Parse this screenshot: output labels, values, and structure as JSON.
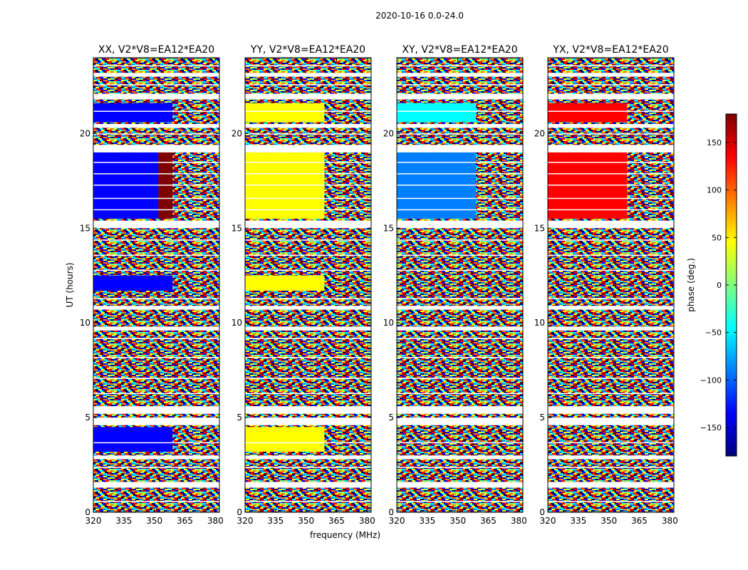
{
  "figure": {
    "suptitle": "2020-10-16 0.0-24.0"
  },
  "colorbar": {
    "label": "phase (deg.)",
    "range": [
      -180,
      180
    ],
    "ticks": [
      150,
      100,
      50,
      0,
      -50,
      -100,
      -150
    ],
    "tick_labels": [
      "150",
      "100",
      "50",
      "0",
      "−50",
      "−100",
      "−150"
    ],
    "colormap": "jet",
    "colors": [
      "#00007f",
      "#0000ff",
      "#007fff",
      "#00ffff",
      "#7fff7f",
      "#ffff00",
      "#ff7f00",
      "#ff0000",
      "#7f0000"
    ]
  },
  "chart_data": [
    {
      "type": "heatmap",
      "title": "XX, V2*V8=EA12*EA20",
      "xlabel": "",
      "ylabel": "UT (hours)",
      "xlim": [
        320,
        382
      ],
      "ylim": [
        0,
        24
      ],
      "x_ticks": [
        320,
        335,
        350,
        365,
        380
      ],
      "y_ticks": [
        0,
        5,
        10,
        15,
        20
      ],
      "coherent_phase_blocks": [
        {
          "time": [
            15.5,
            19
          ],
          "freq": [
            320,
            352
          ],
          "phase": -140
        },
        {
          "time": [
            15.5,
            19
          ],
          "freq": [
            352,
            359
          ],
          "phase": 170
        },
        {
          "time": [
            20.6,
            21.6
          ],
          "freq": [
            320,
            359
          ],
          "phase": -140
        },
        {
          "time": [
            11.7,
            12.5
          ],
          "freq": [
            320,
            359
          ],
          "phase": -140
        },
        {
          "time": [
            3.2,
            4.5
          ],
          "freq": [
            320,
            359
          ],
          "phase": -130
        }
      ]
    },
    {
      "type": "heatmap",
      "title": "YY, V2*V8=EA12*EA20",
      "xlabel": "frequency (MHz)",
      "ylabel": "",
      "xlim": [
        320,
        382
      ],
      "ylim": [
        0,
        24
      ],
      "x_ticks": [
        320,
        335,
        350,
        365,
        380
      ],
      "y_ticks": [
        0,
        5,
        10,
        15,
        20
      ],
      "coherent_phase_blocks": [
        {
          "time": [
            15.5,
            19
          ],
          "freq": [
            320,
            359
          ],
          "phase": 60
        },
        {
          "time": [
            20.6,
            21.6
          ],
          "freq": [
            320,
            359
          ],
          "phase": 60
        },
        {
          "time": [
            11.7,
            12.5
          ],
          "freq": [
            320,
            359
          ],
          "phase": 60
        },
        {
          "time": [
            3.2,
            4.5
          ],
          "freq": [
            320,
            359
          ],
          "phase": 55
        }
      ]
    },
    {
      "type": "heatmap",
      "title": "XY, V2*V8=EA12*EA20",
      "xlabel": "",
      "ylabel": "",
      "xlim": [
        320,
        382
      ],
      "ylim": [
        0,
        24
      ],
      "x_ticks": [
        320,
        335,
        350,
        365,
        380
      ],
      "y_ticks": [
        0,
        5,
        10,
        15,
        20
      ],
      "coherent_phase_blocks": [
        {
          "time": [
            15.5,
            19
          ],
          "freq": [
            320,
            359
          ],
          "phase": -90
        },
        {
          "time": [
            20.6,
            21.6
          ],
          "freq": [
            320,
            359
          ],
          "phase": -60
        }
      ]
    },
    {
      "type": "heatmap",
      "title": "YX, V2*V8=EA12*EA20",
      "xlabel": "",
      "ylabel": "",
      "xlim": [
        320,
        382
      ],
      "ylim": [
        0,
        24
      ],
      "x_ticks": [
        320,
        335,
        350,
        365,
        380
      ],
      "y_ticks": [
        0,
        5,
        10,
        15,
        20
      ],
      "coherent_phase_blocks": [
        {
          "time": [
            15.5,
            19
          ],
          "freq": [
            320,
            359
          ],
          "phase": 130
        },
        {
          "time": [
            20.6,
            21.6
          ],
          "freq": [
            320,
            359
          ],
          "phase": 150
        }
      ]
    }
  ]
}
